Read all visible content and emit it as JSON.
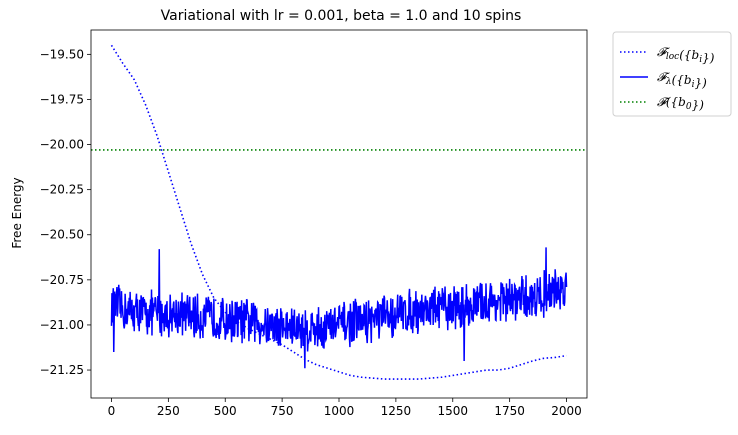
{
  "chart_data": {
    "type": "line",
    "title": "Variational with lr = 0.001, beta = 1.0 and 10 spins",
    "xlabel": "",
    "ylabel": "Free Energy",
    "xlim": [
      -90,
      2090
    ],
    "ylim": [
      -21.405,
      -19.365
    ],
    "xticks": [
      0,
      250,
      500,
      750,
      1000,
      1250,
      1500,
      1750,
      2000
    ],
    "xtick_labels": [
      "0",
      "250",
      "500",
      "750",
      "1000",
      "1250",
      "1500",
      "1750",
      "2000"
    ],
    "yticks": [
      -21.25,
      -21.0,
      -20.75,
      -20.5,
      -20.25,
      -20.0,
      -19.75,
      -19.5
    ],
    "ytick_labels": [
      "−21.25",
      "−21.00",
      "−20.75",
      "−20.50",
      "−20.25",
      "−20.00",
      "−19.75",
      "−19.50"
    ],
    "grid": false,
    "legend_position": "outside-top-right",
    "series": [
      {
        "name": "𝓕loc({bi})",
        "style": "dotted",
        "color": "#0000ff",
        "x": [
          0,
          50,
          100,
          150,
          200,
          250,
          300,
          350,
          400,
          450,
          500,
          550,
          600,
          650,
          700,
          750,
          800,
          850,
          900,
          950,
          1000,
          1050,
          1100,
          1150,
          1200,
          1250,
          1300,
          1350,
          1400,
          1450,
          1500,
          1550,
          1600,
          1650,
          1700,
          1750,
          1800,
          1850,
          1900,
          1950,
          2000
        ],
        "y": [
          -19.45,
          -19.55,
          -19.64,
          -19.78,
          -19.95,
          -20.15,
          -20.35,
          -20.55,
          -20.72,
          -20.85,
          -20.93,
          -20.98,
          -21.02,
          -21.05,
          -21.08,
          -21.11,
          -21.15,
          -21.19,
          -21.22,
          -21.24,
          -21.26,
          -21.28,
          -21.29,
          -21.295,
          -21.3,
          -21.3,
          -21.3,
          -21.3,
          -21.295,
          -21.29,
          -21.28,
          -21.27,
          -21.26,
          -21.25,
          -21.25,
          -21.24,
          -21.22,
          -21.2,
          -21.185,
          -21.18,
          -21.17
        ]
      },
      {
        "name": "𝓕λ({bi})",
        "style": "solid",
        "color": "#0000ff",
        "x": [
          0,
          100,
          200,
          300,
          400,
          500,
          600,
          700,
          800,
          900,
          1000,
          1100,
          1200,
          1300,
          1400,
          1500,
          1600,
          1700,
          1800,
          1900,
          2000
        ],
        "y": [
          -20.9,
          -20.93,
          -20.94,
          -20.94,
          -20.96,
          -20.97,
          -20.98,
          -21.0,
          -21.02,
          -21.02,
          -21.0,
          -20.98,
          -20.96,
          -20.93,
          -20.91,
          -20.9,
          -20.89,
          -20.87,
          -20.86,
          -20.83,
          -20.8
        ],
        "noise_amplitude": 0.14,
        "spikes": [
          {
            "x": 210,
            "y": -20.58
          },
          {
            "x": 10,
            "y": -21.15
          },
          {
            "x": 850,
            "y": -21.24
          },
          {
            "x": 1550,
            "y": -21.2
          },
          {
            "x": 1910,
            "y": -20.57
          }
        ]
      },
      {
        "name": "𝓕({b0})",
        "style": "dotted",
        "color": "#008000",
        "x": [
          -90,
          2090
        ],
        "y": [
          -20.03,
          -20.03
        ]
      }
    ]
  },
  "legend": {
    "items": [
      {
        "pre": "𝓕",
        "sub": "loc",
        "post": "({b",
        "sub2": "i",
        "end": "})",
        "style": "dotted",
        "color": "#0000ff"
      },
      {
        "pre": "𝓕",
        "sub": "λ",
        "post": "({b",
        "sub2": "i",
        "end": "})",
        "style": "solid",
        "color": "#0000ff"
      },
      {
        "pre": "𝓕",
        "sub": "",
        "post": "({b",
        "sub2": "0",
        "end": "})",
        "style": "dotted",
        "color": "#008000"
      }
    ]
  }
}
